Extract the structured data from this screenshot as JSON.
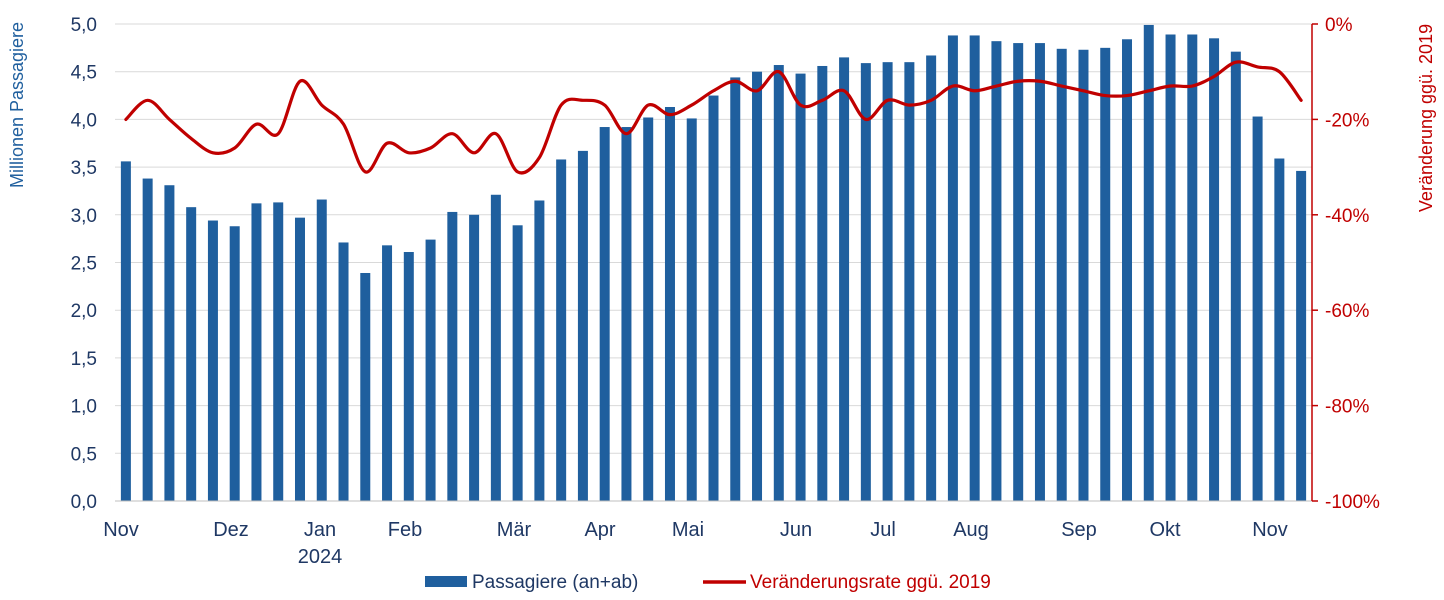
{
  "chart_data": {
    "type": "bar",
    "title": "",
    "ylabel": "Millionen Passagiere",
    "y2label": "Veränderung ggü. 2019",
    "ylim": [
      0,
      5
    ],
    "y2lim": [
      -100,
      0
    ],
    "y_ticks": [
      "0,0",
      "0,5",
      "1,0",
      "1,5",
      "2,0",
      "2,5",
      "3,0",
      "3,5",
      "4,0",
      "4,5",
      "5,0"
    ],
    "y2_ticks": [
      "-100%",
      "-80%",
      "-60%",
      "-40%",
      "-20%",
      "0%"
    ],
    "x_month_labels": [
      "Nov",
      "Dez",
      "Jan",
      "Feb",
      "Mär",
      "Apr",
      "Mai",
      "Jun",
      "Jul",
      "Aug",
      "Sep",
      "Okt",
      "Nov"
    ],
    "x_year_label": "2024",
    "grid": "horizontal",
    "legend_position": "bottom",
    "series": [
      {
        "name": "Passagiere (an+ab)",
        "type": "bar",
        "axis": "left",
        "color": "#1f5f9e",
        "values": [
          3.56,
          3.38,
          3.31,
          3.08,
          2.94,
          2.88,
          3.12,
          3.13,
          2.97,
          3.16,
          2.71,
          2.39,
          2.68,
          2.61,
          2.74,
          3.03,
          3.0,
          3.21,
          2.89,
          3.15,
          3.58,
          3.67,
          3.92,
          3.92,
          4.02,
          4.13,
          4.01,
          4.25,
          4.44,
          4.5,
          4.57,
          4.48,
          4.56,
          4.65,
          4.59,
          4.6,
          4.6,
          4.67,
          4.88,
          4.88,
          4.82,
          4.8,
          4.8,
          4.74,
          4.73,
          4.75,
          4.84,
          4.99,
          4.89,
          4.89,
          4.85,
          4.71,
          4.03,
          3.59,
          3.46
        ]
      },
      {
        "name": "Veränderungsrate ggü. 2019",
        "type": "line",
        "axis": "right",
        "color": "#c00000",
        "values": [
          -20,
          -16,
          -20,
          -24,
          -27,
          -26,
          -21,
          -23,
          -12,
          -17,
          -21,
          -31,
          -25,
          -27,
          -26,
          -23,
          -27,
          -23,
          -31,
          -28,
          -17,
          -16,
          -17,
          -23,
          -17,
          -19,
          -17,
          -14,
          -12,
          -14,
          -10,
          -17,
          -16,
          -14,
          -20,
          -16,
          -17,
          -16,
          -13,
          -14,
          -13,
          -12,
          -12,
          -13,
          -14,
          -15,
          -15,
          -14,
          -13,
          -13,
          -11,
          -8,
          -9,
          -10,
          -16
        ]
      }
    ]
  },
  "colors": {
    "bar": "#1f5f9e",
    "line": "#c00000",
    "left_axis_text": "#1f3864",
    "right_axis_text": "#c00000",
    "grid": "#d9d9d9"
  }
}
